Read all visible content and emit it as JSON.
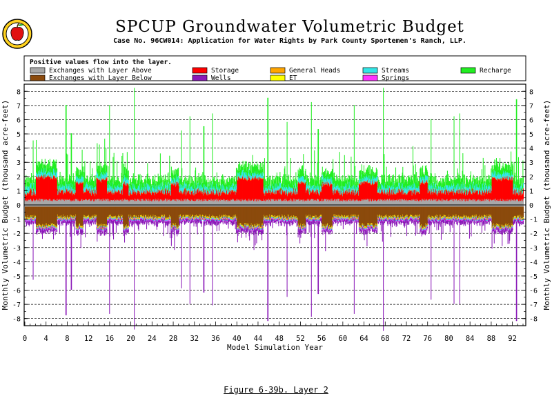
{
  "page": {
    "title": "SPCUP Groundwater Volumetric Budget",
    "subtitle": "Case No. 96CW014: Application for Water Rights by Park County Sportemen's Ranch, LLP.",
    "caption": "Figure 6-39b.   Layer 2",
    "logo_icon": "apple-logo-icon"
  },
  "colors": {
    "exchange_above": "#a8a8a8",
    "exchange_below": "#8b4a0c",
    "storage": "#ff0000",
    "wells": "#8b1ab8",
    "general_heads": "#ffa500",
    "et": "#ffff00",
    "streams": "#33e6e6",
    "springs": "#ff33ff",
    "recharge": "#22ee22"
  },
  "chart_data": {
    "type": "area",
    "title": "SPCUP Groundwater Volumetric Budget",
    "legend_note": "Positive values flow into the layer.",
    "xlabel": "Model Simulation Year",
    "ylabel": "Monthly Volumetric Budget (thousand acre-feet)",
    "xlim": [
      0,
      94
    ],
    "ylim": [
      -8.5,
      8.5
    ],
    "x_ticks": [
      0,
      4,
      8,
      12,
      16,
      20,
      24,
      28,
      32,
      36,
      40,
      44,
      48,
      52,
      56,
      60,
      64,
      68,
      72,
      76,
      80,
      84,
      88,
      92
    ],
    "y_ticks": [
      8,
      7,
      6,
      5,
      4,
      3,
      2,
      1,
      0,
      -1,
      -2,
      -3,
      -4,
      -5,
      -6,
      -7,
      -8
    ],
    "grid": true,
    "legend_position": "top",
    "series": [
      {
        "name": "Exchanges with Layer Above",
        "color": "#a8a8a8",
        "typical_inflow": 0.3,
        "typical_outflow": -0.1
      },
      {
        "name": "Exchanges with Layer Below",
        "color": "#8b4a0c",
        "typical_inflow": 0.0,
        "typical_outflow": -1.0
      },
      {
        "name": "Storage",
        "color": "#ff0000",
        "typical_inflow": 1.2,
        "typical_outflow": -0.3
      },
      {
        "name": "Wells",
        "color": "#8b1ab8",
        "typical_inflow": 0.0,
        "typical_outflow": -0.5
      },
      {
        "name": "General Heads",
        "color": "#ffa500",
        "typical_inflow": 0.05,
        "typical_outflow": -0.05
      },
      {
        "name": "ET",
        "color": "#ffff00",
        "typical_inflow": 0.0,
        "typical_outflow": -0.05
      },
      {
        "name": "Streams",
        "color": "#33e6e6",
        "typical_inflow": 0.2,
        "typical_outflow": -0.3
      },
      {
        "name": "Springs",
        "color": "#ff33ff",
        "typical_inflow": 0.0,
        "typical_outflow": -0.1
      },
      {
        "name": "Recharge",
        "color": "#22ee22",
        "typical_inflow": 0.4,
        "typical_outflow": 0.0
      }
    ],
    "peak_events": [
      {
        "year": 1.5,
        "inflow": 4.5,
        "outflow": -4.6
      },
      {
        "year": 7.7,
        "inflow": 7.0,
        "outflow": -7.1
      },
      {
        "year": 8.7,
        "inflow": 5.0,
        "outflow": -5.3
      },
      {
        "year": 15.9,
        "inflow": 7.0,
        "outflow": -7.0
      },
      {
        "year": 20.6,
        "inflow": 8.2,
        "outflow": -8.1
      },
      {
        "year": 29.5,
        "inflow": 5.2,
        "outflow": -5.2
      },
      {
        "year": 31.1,
        "inflow": 6.2,
        "outflow": -6.3
      },
      {
        "year": 33.7,
        "inflow": 5.5,
        "outflow": -5.5
      },
      {
        "year": 35.3,
        "inflow": 6.4,
        "outflow": -6.4
      },
      {
        "year": 45.8,
        "inflow": 7.5,
        "outflow": -7.5
      },
      {
        "year": 49.4,
        "inflow": 5.8,
        "outflow": -5.8
      },
      {
        "year": 54.0,
        "inflow": 7.2,
        "outflow": -7.2
      },
      {
        "year": 55.3,
        "inflow": 5.3,
        "outflow": -5.6
      },
      {
        "year": 62.1,
        "inflow": 7.0,
        "outflow": -7.0
      },
      {
        "year": 67.6,
        "inflow": 8.2,
        "outflow": -8.2
      },
      {
        "year": 76.6,
        "inflow": 6.0,
        "outflow": -6.0
      },
      {
        "year": 80.9,
        "inflow": 6.2,
        "outflow": -6.3
      },
      {
        "year": 82.0,
        "inflow": 6.4,
        "outflow": -6.3
      },
      {
        "year": 92.7,
        "inflow": 7.4,
        "outflow": -7.5
      }
    ],
    "storage_blocks": [
      {
        "start": 2.0,
        "end": 6.0,
        "value": 1.6
      },
      {
        "start": 9.5,
        "end": 11.0,
        "value": 1.2
      },
      {
        "start": 13.5,
        "end": 15.5,
        "value": 1.4
      },
      {
        "start": 18.5,
        "end": 19.5,
        "value": 1.1
      },
      {
        "start": 27.5,
        "end": 29.0,
        "value": 1.1
      },
      {
        "start": 40.0,
        "end": 45.0,
        "value": 1.5
      },
      {
        "start": 51.5,
        "end": 53.0,
        "value": 1.2
      },
      {
        "start": 56.0,
        "end": 58.0,
        "value": 1.1
      },
      {
        "start": 63.0,
        "end": 66.5,
        "value": 1.2
      },
      {
        "start": 74.5,
        "end": 76.0,
        "value": 1.2
      },
      {
        "start": 88.0,
        "end": 92.0,
        "value": 1.5
      }
    ]
  }
}
